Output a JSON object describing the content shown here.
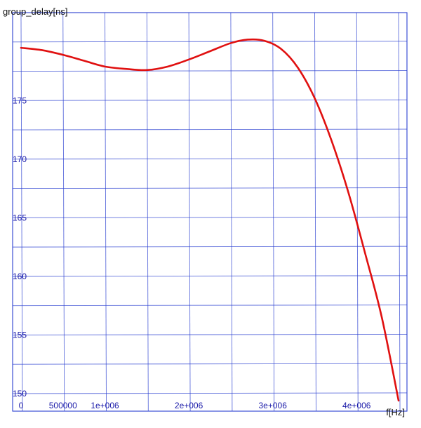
{
  "chart_data": {
    "type": "line",
    "ylabel": "group_delay[ns]",
    "xlabel": "f[Hz]",
    "xlim": [
      -100000,
      4600000
    ],
    "ylim": [
      148.5,
      182.5
    ],
    "x_ticks": [
      0,
      500000,
      1000000,
      2000000,
      3000000,
      4000000
    ],
    "x_tick_labels": [
      "0",
      "500000",
      "1e+006",
      "2e+006",
      "3e+006",
      "4e+006"
    ],
    "y_ticks": [
      150,
      155,
      160,
      165,
      170,
      175
    ],
    "y_tick_labels": [
      "150",
      "155",
      "160",
      "165",
      "170",
      "175"
    ],
    "grid": true,
    "line_color": "#e01010",
    "grid_color": "#2a3fd0",
    "series": [
      {
        "x": [
          0,
          250000,
          500000,
          750000,
          1000000,
          1250000,
          1500000,
          1750000,
          2000000,
          2250000,
          2500000,
          2700000,
          2900000,
          3100000,
          3300000,
          3500000,
          3700000,
          3900000,
          4100000,
          4300000,
          4500000
        ],
        "y": [
          179.5,
          179.3,
          178.9,
          178.4,
          177.9,
          177.7,
          177.6,
          177.9,
          178.5,
          179.2,
          179.9,
          180.2,
          180.1,
          179.4,
          177.8,
          175.2,
          171.6,
          167.2,
          162.0,
          156.5,
          149.4
        ]
      }
    ]
  }
}
